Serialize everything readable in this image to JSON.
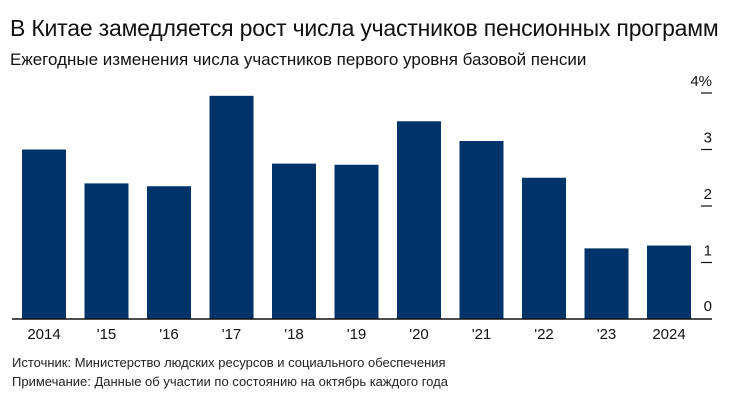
{
  "header": {
    "title": "В Китае замедляется рост числа участников пенсионных программ",
    "subtitle": "Ежегодные изменения числа участников первого уровня базовой пенсии"
  },
  "chart_data": {
    "type": "bar",
    "categories": [
      "2014",
      "'15",
      "'16",
      "'17",
      "'18",
      "'19",
      "'20",
      "'21",
      "'22",
      "'23",
      "2024"
    ],
    "values": [
      3.0,
      2.4,
      2.35,
      3.95,
      2.75,
      2.73,
      3.5,
      3.15,
      2.5,
      1.25,
      1.3
    ],
    "ylim": [
      0,
      4
    ],
    "yticks": [
      {
        "value": 0,
        "label": "0"
      },
      {
        "value": 1,
        "label": "1"
      },
      {
        "value": 2,
        "label": "2"
      },
      {
        "value": 3,
        "label": "3"
      },
      {
        "value": 4,
        "label": "4%"
      }
    ],
    "y_axis_side": "right",
    "grid": false,
    "colors": {
      "bar": "#00336a",
      "axis": "#111111"
    }
  },
  "footer": {
    "source": "Источник: Министерство людских ресурсов и социального обеспечения",
    "note": "Примечание: Данные об участии по состоянию на октябрь каждого года"
  }
}
